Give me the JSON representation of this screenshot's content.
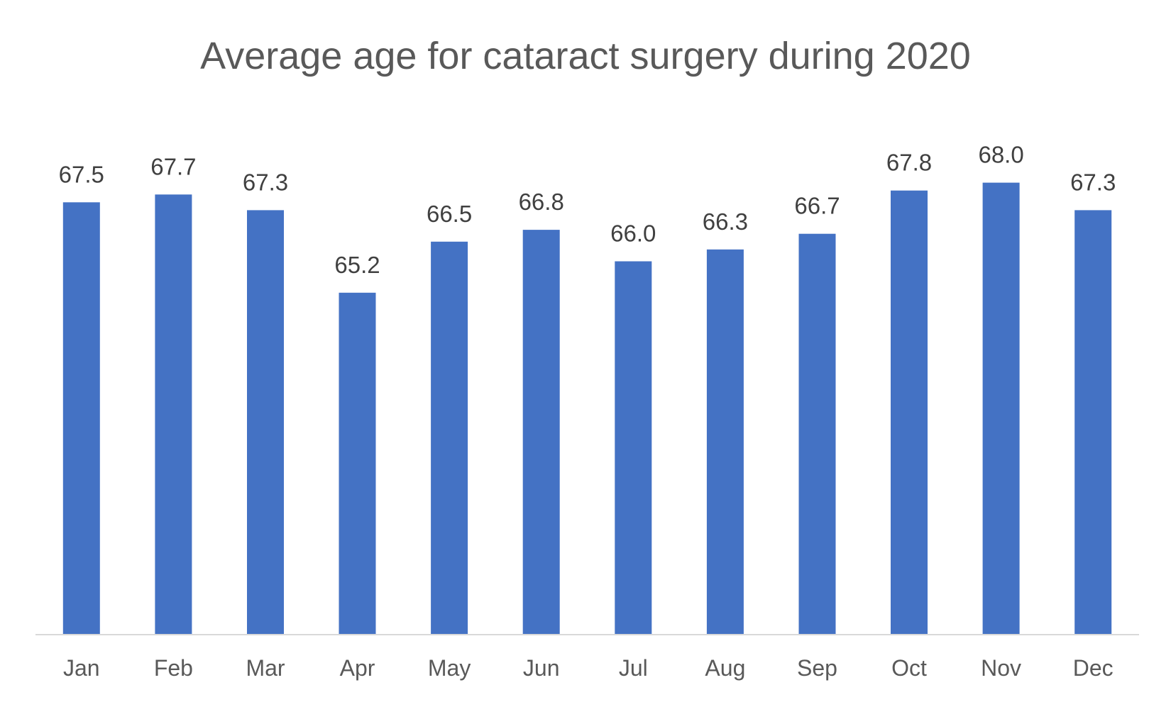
{
  "chart_data": {
    "type": "bar",
    "title": "Average age for cataract surgery during 2020",
    "xlabel": "",
    "ylabel": "",
    "categories": [
      "Jan",
      "Feb",
      "Mar",
      "Apr",
      "May",
      "Jun",
      "Jul",
      "Aug",
      "Sep",
      "Oct",
      "Nov",
      "Dec"
    ],
    "values": [
      67.5,
      67.7,
      67.3,
      65.2,
      66.5,
      66.8,
      66.0,
      66.3,
      66.7,
      67.8,
      68.0,
      67.3
    ],
    "data_labels": [
      "67.5",
      "67.7",
      "67.3",
      "65.2",
      "66.5",
      "66.8",
      "66.0",
      "66.3",
      "66.7",
      "67.8",
      "68.0",
      "67.3"
    ],
    "ylim": [
      56.5,
      68.3
    ],
    "grid": false,
    "legend": "none",
    "colors": {
      "bar": "#4472C4",
      "axis": "#D9D9D9",
      "title": "#595959",
      "label": "#404040",
      "tick": "#595959"
    }
  }
}
